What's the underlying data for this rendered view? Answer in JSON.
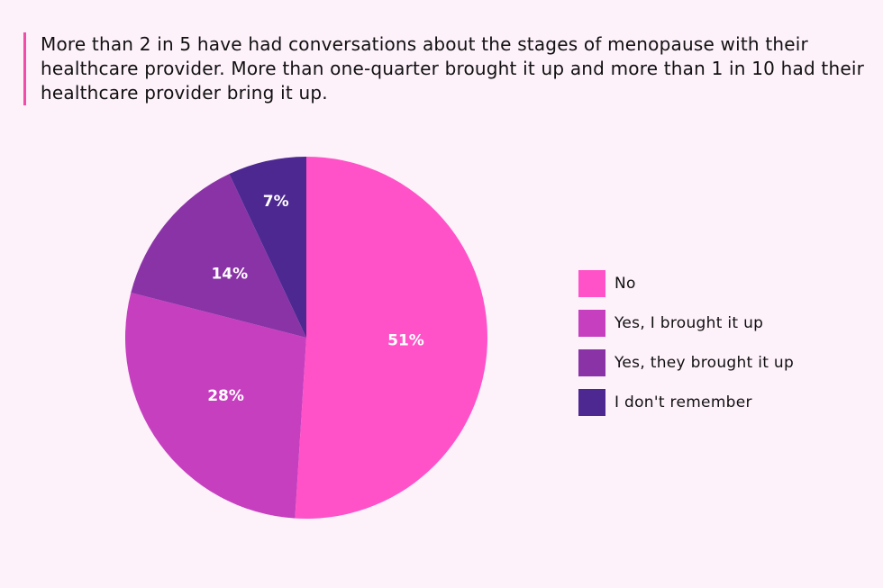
{
  "header": {
    "title": "More than 2 in 5 have had conversations about the stages of menopause with their healthcare provider. More than one-quarter brought it up and more than 1 in 10 had their healthcare provider bring it up."
  },
  "colors": {
    "background": "#fdf1fa",
    "accent_bar": "#f04ca8"
  },
  "chart_data": {
    "type": "pie",
    "title": "More than 2 in 5 have had conversations about the stages of menopause with their healthcare provider. More than one-quarter brought it up and more than 1 in 10 had their healthcare provider bring it up.",
    "start_angle_deg": 0,
    "direction": "clockwise",
    "legend_position": "right",
    "slices": [
      {
        "label": "No",
        "value": 51,
        "value_label": "51%",
        "color": "#ff52c8"
      },
      {
        "label": "Yes, I brought it up",
        "value": 28,
        "value_label": "28%",
        "color": "#c63fbf"
      },
      {
        "label": "Yes, they brought it up",
        "value": 14,
        "value_label": "14%",
        "color": "#8a33a6"
      },
      {
        "label": "I don't remember",
        "value": 7,
        "value_label": "7%",
        "color": "#4d2891"
      }
    ]
  }
}
